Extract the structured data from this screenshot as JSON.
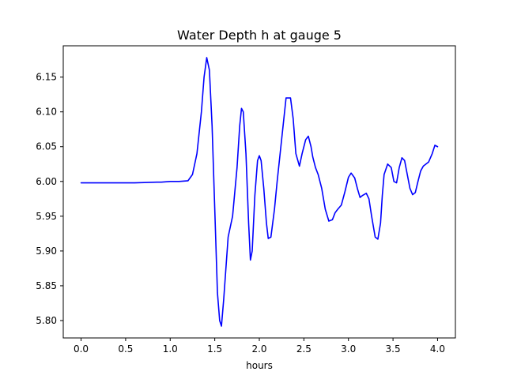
{
  "chart_data": {
    "type": "line",
    "title": "Water Depth h at gauge 5",
    "xlabel": "hours",
    "ylabel": "",
    "xlim": [
      -0.2,
      4.2
    ],
    "ylim": [
      5.775,
      6.195
    ],
    "xticks": [
      0.0,
      0.5,
      1.0,
      1.5,
      2.0,
      2.5,
      3.0,
      3.5,
      4.0
    ],
    "xtick_labels": [
      "0.0",
      "0.5",
      "1.0",
      "1.5",
      "2.0",
      "2.5",
      "3.0",
      "3.5",
      "4.0"
    ],
    "yticks": [
      5.8,
      5.85,
      5.9,
      5.95,
      6.0,
      6.05,
      6.1,
      6.15
    ],
    "ytick_labels": [
      "5.80",
      "5.85",
      "5.90",
      "5.95",
      "6.00",
      "6.05",
      "6.10",
      "6.15"
    ],
    "grid": false,
    "line_color": "#0000ff",
    "series": [
      {
        "x": [
          0.0,
          0.3,
          0.6,
          0.85,
          0.9,
          1.0,
          1.1,
          1.2,
          1.25,
          1.3,
          1.35,
          1.38,
          1.41,
          1.44,
          1.47,
          1.5,
          1.53,
          1.555,
          1.575,
          1.6,
          1.65,
          1.7,
          1.75,
          1.78,
          1.8,
          1.82,
          1.85,
          1.88,
          1.9,
          1.92,
          1.95,
          1.98,
          2.0,
          2.02,
          2.05,
          2.08,
          2.1,
          2.13,
          2.17,
          2.2,
          2.25,
          2.3,
          2.35,
          2.38,
          2.41,
          2.45,
          2.48,
          2.5,
          2.52,
          2.55,
          2.58,
          2.6,
          2.63,
          2.66,
          2.7,
          2.74,
          2.78,
          2.82,
          2.85,
          2.88,
          2.92,
          2.96,
          3.0,
          3.03,
          3.07,
          3.1,
          3.13,
          3.16,
          3.2,
          3.23,
          3.26,
          3.3,
          3.33,
          3.36,
          3.38,
          3.4,
          3.44,
          3.48,
          3.51,
          3.54,
          3.57,
          3.6,
          3.63,
          3.66,
          3.69,
          3.72,
          3.75,
          3.78,
          3.81,
          3.84,
          3.87,
          3.9,
          3.94,
          3.97,
          4.0
        ],
        "y": [
          5.998,
          5.998,
          5.998,
          5.999,
          5.999,
          6.0,
          6.0,
          6.001,
          6.01,
          6.04,
          6.1,
          6.15,
          6.178,
          6.16,
          6.08,
          5.96,
          5.84,
          5.8,
          5.792,
          5.83,
          5.92,
          5.95,
          6.02,
          6.08,
          6.105,
          6.1,
          6.04,
          5.94,
          5.887,
          5.9,
          5.98,
          6.03,
          6.037,
          6.03,
          5.99,
          5.94,
          5.918,
          5.92,
          5.96,
          6.0,
          6.06,
          6.12,
          6.12,
          6.09,
          6.04,
          6.022,
          6.04,
          6.05,
          6.06,
          6.065,
          6.05,
          6.035,
          6.02,
          6.01,
          5.99,
          5.96,
          5.943,
          5.945,
          5.955,
          5.96,
          5.966,
          5.985,
          6.006,
          6.012,
          6.005,
          5.99,
          5.977,
          5.98,
          5.983,
          5.975,
          5.95,
          5.92,
          5.917,
          5.94,
          5.98,
          6.01,
          6.025,
          6.02,
          6.0,
          5.998,
          6.02,
          6.034,
          6.03,
          6.01,
          5.99,
          5.981,
          5.984,
          6.0,
          6.015,
          6.022,
          6.025,
          6.028,
          6.04,
          6.052,
          6.05
        ]
      }
    ]
  }
}
